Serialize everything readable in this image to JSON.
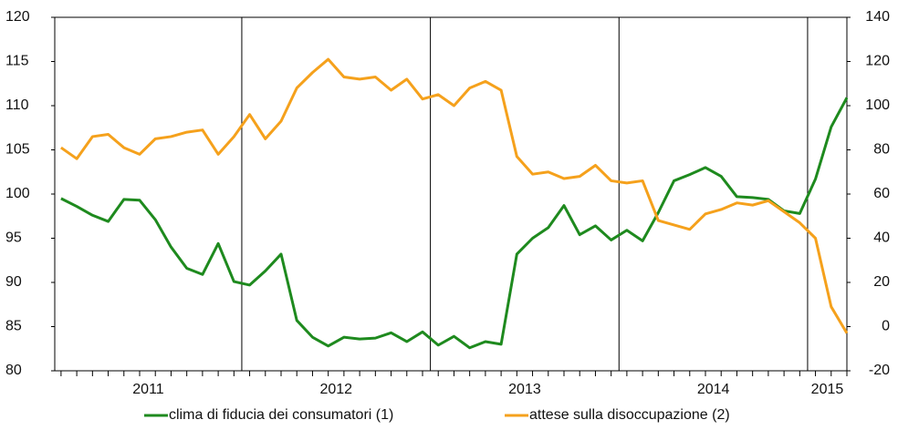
{
  "chart_data": {
    "type": "line",
    "categories": [
      "2011",
      null,
      null,
      null,
      null,
      null,
      null,
      null,
      null,
      null,
      null,
      null,
      "2012",
      null,
      null,
      null,
      null,
      null,
      null,
      null,
      null,
      null,
      null,
      null,
      "2013",
      null,
      null,
      null,
      null,
      null,
      null,
      null,
      null,
      null,
      null,
      null,
      "2014",
      null,
      null,
      null,
      null,
      null,
      null,
      null,
      null,
      null,
      null,
      null,
      "2015",
      null,
      null
    ],
    "series": [
      {
        "name": "clima di fiducia dei consumatori (1)",
        "color": "#1e8a1e",
        "axis": "y",
        "values": [
          99.5,
          98.6,
          97.6,
          96.9,
          99.4,
          99.3,
          97.1,
          94.0,
          91.6,
          90.9,
          94.4,
          90.1,
          89.7,
          91.3,
          93.2,
          85.7,
          83.8,
          82.8,
          83.8,
          83.6,
          83.7,
          84.3,
          83.3,
          84.4,
          82.9,
          83.9,
          82.6,
          83.3,
          83.0,
          93.2,
          95.0,
          96.2,
          98.7,
          95.4,
          96.4,
          94.8,
          95.9,
          94.7,
          97.9,
          101.5,
          102.2,
          103.0,
          102.0,
          99.7,
          99.6,
          99.4,
          98.1,
          97.8,
          101.7,
          107.6,
          110.9
        ]
      },
      {
        "name": "attese sulla disoccupazione (2)",
        "color": "#f5a11c",
        "axis": "y2",
        "values": [
          81,
          76,
          86,
          87,
          81,
          78,
          85,
          86,
          88,
          89,
          78,
          86,
          96,
          85,
          93,
          108,
          115,
          121,
          113,
          112,
          113,
          107,
          112,
          103,
          105,
          100,
          108,
          111,
          107,
          77,
          69,
          70,
          67,
          68,
          73,
          66,
          65,
          66,
          48,
          46,
          44,
          51,
          53,
          56,
          55,
          57,
          52,
          47,
          40,
          9,
          -3
        ]
      }
    ],
    "ylim": [
      80,
      120
    ],
    "yticks": [
      80,
      85,
      90,
      95,
      100,
      105,
      110,
      115,
      120
    ],
    "y2lim": [
      -20,
      140
    ],
    "y2ticks": [
      -20,
      0,
      20,
      40,
      60,
      80,
      100,
      120,
      140
    ]
  }
}
